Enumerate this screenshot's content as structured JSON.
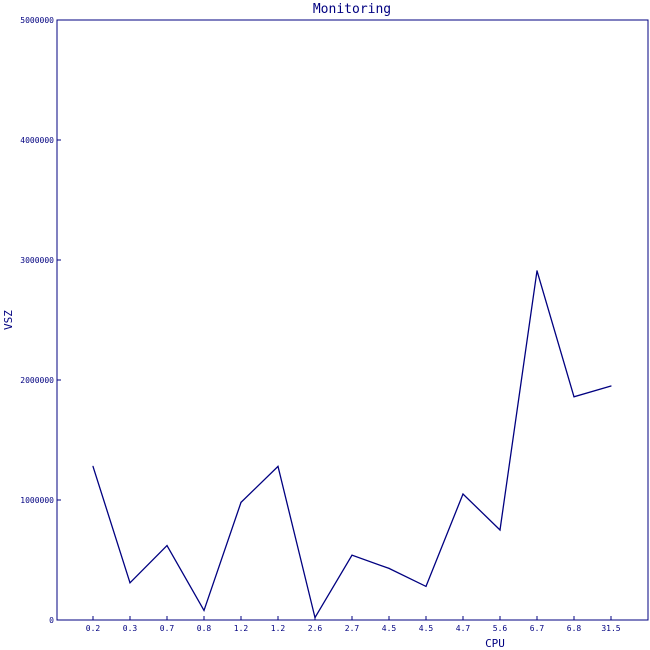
{
  "chart_data": {
    "type": "line",
    "title": "Monitoring",
    "xlabel": "CPU",
    "ylabel": "VSZ",
    "categories": [
      "0.2",
      "0.3",
      "0.7",
      "0.8",
      "1.2",
      "1.2",
      "2.6",
      "2.7",
      "4.5",
      "4.5",
      "4.7",
      "5.6",
      "6.7",
      "6.8",
      "31.5"
    ],
    "series": [
      {
        "values": [
          1280000,
          310000,
          620000,
          80000,
          980000,
          1280000,
          20000,
          540000,
          430000,
          280000,
          1050000,
          750000,
          2910000,
          1860000,
          1950000
        ]
      }
    ],
    "yticks": [
      "0",
      "1000000",
      "2000000",
      "3000000",
      "4000000",
      "5000000"
    ],
    "ylim": [
      0,
      5000000
    ],
    "grid": false,
    "line_color": "#000080"
  }
}
